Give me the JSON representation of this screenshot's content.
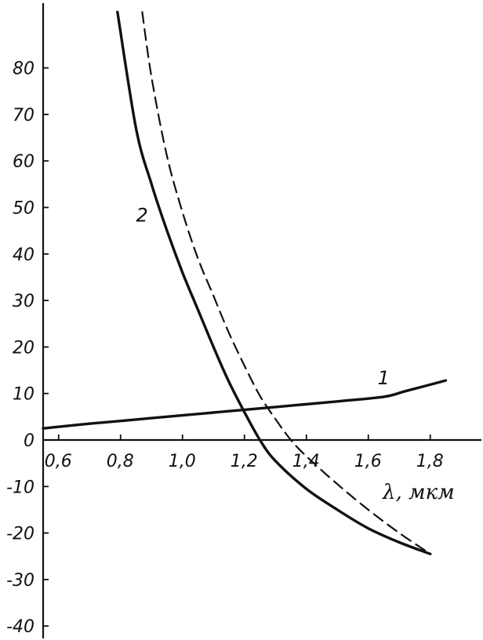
{
  "chart_data": {
    "type": "line",
    "title": "",
    "xlabel": "λ, мкм",
    "ylabel": "",
    "xlim": [
      0.55,
      1.95
    ],
    "ylim": [
      -40,
      90
    ],
    "grid": false,
    "x_ticks": [
      {
        "value": 0.6,
        "label": "0,6"
      },
      {
        "value": 0.8,
        "label": "0,8"
      },
      {
        "value": 1.0,
        "label": "1,0"
      },
      {
        "value": 1.2,
        "label": "1,2"
      },
      {
        "value": 1.4,
        "label": "1,4"
      },
      {
        "value": 1.6,
        "label": "1,6"
      },
      {
        "value": 1.8,
        "label": "1,8"
      }
    ],
    "y_ticks": [
      {
        "value": 80,
        "label": "80"
      },
      {
        "value": 70,
        "label": "70"
      },
      {
        "value": 60,
        "label": "60"
      },
      {
        "value": 50,
        "label": "50"
      },
      {
        "value": 40,
        "label": "40"
      },
      {
        "value": 30,
        "label": "30"
      },
      {
        "value": 20,
        "label": "20"
      },
      {
        "value": 10,
        "label": "10"
      },
      {
        "value": 0,
        "label": "0"
      },
      {
        "value": -10,
        "label": "-10"
      },
      {
        "value": -20,
        "label": "-20"
      },
      {
        "value": -30,
        "label": "-30"
      },
      {
        "value": -40,
        "label": "-40"
      }
    ],
    "series": [
      {
        "name": "1",
        "style": "solid",
        "x": [
          0.55,
          0.7,
          0.9,
          1.1,
          1.3,
          1.5,
          1.65,
          1.72,
          1.85
        ],
        "y": [
          2.5,
          3.5,
          4.7,
          5.9,
          7.1,
          8.3,
          9.3,
          10.5,
          12.8
        ]
      },
      {
        "name": "2",
        "style": "solid",
        "x": [
          0.79,
          0.85,
          0.9,
          0.95,
          1.0,
          1.05,
          1.1,
          1.15,
          1.2,
          1.25,
          1.3,
          1.4,
          1.5,
          1.6,
          1.7,
          1.8
        ],
        "y": [
          92,
          67,
          55,
          45,
          36,
          28,
          20,
          12.5,
          6,
          0,
          -4.5,
          -10.5,
          -15,
          -19,
          -22,
          -24.5
        ]
      },
      {
        "name": "",
        "style": "dashed",
        "x": [
          0.87,
          0.9,
          0.95,
          1.0,
          1.05,
          1.1,
          1.15,
          1.2,
          1.25,
          1.3,
          1.35,
          1.4,
          1.5,
          1.6,
          1.7,
          1.8
        ],
        "y": [
          92,
          78,
          61,
          49,
          39,
          31,
          23,
          16,
          9.5,
          4.5,
          0,
          -3.5,
          -9.5,
          -15,
          -20,
          -24.5
        ]
      }
    ],
    "annotations": [
      {
        "text": "1",
        "x": 1.63,
        "y": 12
      },
      {
        "text": "2",
        "x": 0.85,
        "y": 47
      }
    ],
    "colors": {
      "line": "#111111",
      "background": "#ffffff"
    }
  }
}
